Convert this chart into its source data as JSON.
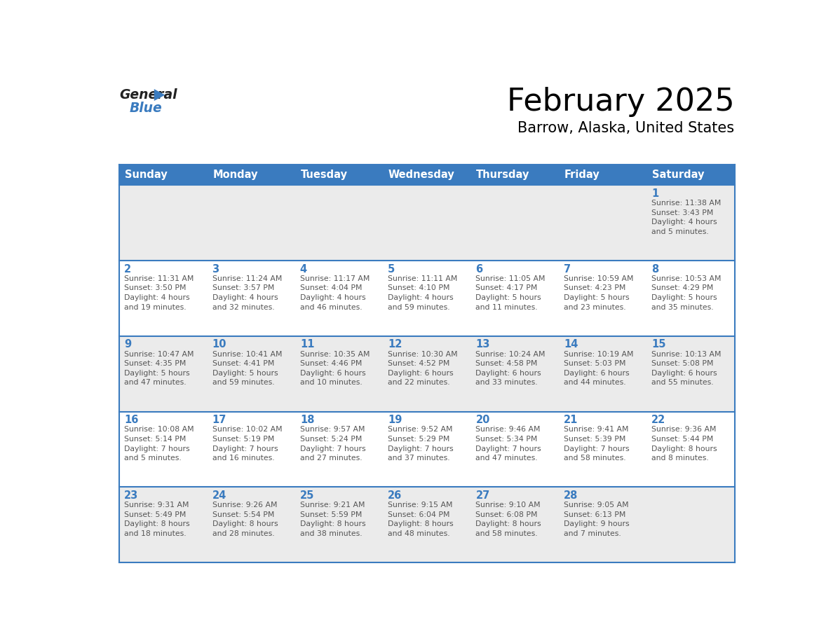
{
  "title": "February 2025",
  "subtitle": "Barrow, Alaska, United States",
  "header_bg_color": "#3a7bbf",
  "header_text_color": "#ffffff",
  "day_names": [
    "Sunday",
    "Monday",
    "Tuesday",
    "Wednesday",
    "Thursday",
    "Friday",
    "Saturday"
  ],
  "row_odd_bg": "#ebebeb",
  "row_even_bg": "#ffffff",
  "cell_border_color": "#3a7bbf",
  "day_number_color": "#3a7bbf",
  "info_text_color": "#555555",
  "days": [
    {
      "date": 1,
      "col": 6,
      "row": 0,
      "sunrise": "11:38 AM",
      "sunset": "3:43 PM",
      "daylight": "4 hours\nand 5 minutes."
    },
    {
      "date": 2,
      "col": 0,
      "row": 1,
      "sunrise": "11:31 AM",
      "sunset": "3:50 PM",
      "daylight": "4 hours\nand 19 minutes."
    },
    {
      "date": 3,
      "col": 1,
      "row": 1,
      "sunrise": "11:24 AM",
      "sunset": "3:57 PM",
      "daylight": "4 hours\nand 32 minutes."
    },
    {
      "date": 4,
      "col": 2,
      "row": 1,
      "sunrise": "11:17 AM",
      "sunset": "4:04 PM",
      "daylight": "4 hours\nand 46 minutes."
    },
    {
      "date": 5,
      "col": 3,
      "row": 1,
      "sunrise": "11:11 AM",
      "sunset": "4:10 PM",
      "daylight": "4 hours\nand 59 minutes."
    },
    {
      "date": 6,
      "col": 4,
      "row": 1,
      "sunrise": "11:05 AM",
      "sunset": "4:17 PM",
      "daylight": "5 hours\nand 11 minutes."
    },
    {
      "date": 7,
      "col": 5,
      "row": 1,
      "sunrise": "10:59 AM",
      "sunset": "4:23 PM",
      "daylight": "5 hours\nand 23 minutes."
    },
    {
      "date": 8,
      "col": 6,
      "row": 1,
      "sunrise": "10:53 AM",
      "sunset": "4:29 PM",
      "daylight": "5 hours\nand 35 minutes."
    },
    {
      "date": 9,
      "col": 0,
      "row": 2,
      "sunrise": "10:47 AM",
      "sunset": "4:35 PM",
      "daylight": "5 hours\nand 47 minutes."
    },
    {
      "date": 10,
      "col": 1,
      "row": 2,
      "sunrise": "10:41 AM",
      "sunset": "4:41 PM",
      "daylight": "5 hours\nand 59 minutes."
    },
    {
      "date": 11,
      "col": 2,
      "row": 2,
      "sunrise": "10:35 AM",
      "sunset": "4:46 PM",
      "daylight": "6 hours\nand 10 minutes."
    },
    {
      "date": 12,
      "col": 3,
      "row": 2,
      "sunrise": "10:30 AM",
      "sunset": "4:52 PM",
      "daylight": "6 hours\nand 22 minutes."
    },
    {
      "date": 13,
      "col": 4,
      "row": 2,
      "sunrise": "10:24 AM",
      "sunset": "4:58 PM",
      "daylight": "6 hours\nand 33 minutes."
    },
    {
      "date": 14,
      "col": 5,
      "row": 2,
      "sunrise": "10:19 AM",
      "sunset": "5:03 PM",
      "daylight": "6 hours\nand 44 minutes."
    },
    {
      "date": 15,
      "col": 6,
      "row": 2,
      "sunrise": "10:13 AM",
      "sunset": "5:08 PM",
      "daylight": "6 hours\nand 55 minutes."
    },
    {
      "date": 16,
      "col": 0,
      "row": 3,
      "sunrise": "10:08 AM",
      "sunset": "5:14 PM",
      "daylight": "7 hours\nand 5 minutes."
    },
    {
      "date": 17,
      "col": 1,
      "row": 3,
      "sunrise": "10:02 AM",
      "sunset": "5:19 PM",
      "daylight": "7 hours\nand 16 minutes."
    },
    {
      "date": 18,
      "col": 2,
      "row": 3,
      "sunrise": "9:57 AM",
      "sunset": "5:24 PM",
      "daylight": "7 hours\nand 27 minutes."
    },
    {
      "date": 19,
      "col": 3,
      "row": 3,
      "sunrise": "9:52 AM",
      "sunset": "5:29 PM",
      "daylight": "7 hours\nand 37 minutes."
    },
    {
      "date": 20,
      "col": 4,
      "row": 3,
      "sunrise": "9:46 AM",
      "sunset": "5:34 PM",
      "daylight": "7 hours\nand 47 minutes."
    },
    {
      "date": 21,
      "col": 5,
      "row": 3,
      "sunrise": "9:41 AM",
      "sunset": "5:39 PM",
      "daylight": "7 hours\nand 58 minutes."
    },
    {
      "date": 22,
      "col": 6,
      "row": 3,
      "sunrise": "9:36 AM",
      "sunset": "5:44 PM",
      "daylight": "8 hours\nand 8 minutes."
    },
    {
      "date": 23,
      "col": 0,
      "row": 4,
      "sunrise": "9:31 AM",
      "sunset": "5:49 PM",
      "daylight": "8 hours\nand 18 minutes."
    },
    {
      "date": 24,
      "col": 1,
      "row": 4,
      "sunrise": "9:26 AM",
      "sunset": "5:54 PM",
      "daylight": "8 hours\nand 28 minutes."
    },
    {
      "date": 25,
      "col": 2,
      "row": 4,
      "sunrise": "9:21 AM",
      "sunset": "5:59 PM",
      "daylight": "8 hours\nand 38 minutes."
    },
    {
      "date": 26,
      "col": 3,
      "row": 4,
      "sunrise": "9:15 AM",
      "sunset": "6:04 PM",
      "daylight": "8 hours\nand 48 minutes."
    },
    {
      "date": 27,
      "col": 4,
      "row": 4,
      "sunrise": "9:10 AM",
      "sunset": "6:08 PM",
      "daylight": "8 hours\nand 58 minutes."
    },
    {
      "date": 28,
      "col": 5,
      "row": 4,
      "sunrise": "9:05 AM",
      "sunset": "6:13 PM",
      "daylight": "9 hours\nand 7 minutes."
    }
  ],
  "num_rows": 5,
  "num_cols": 7
}
